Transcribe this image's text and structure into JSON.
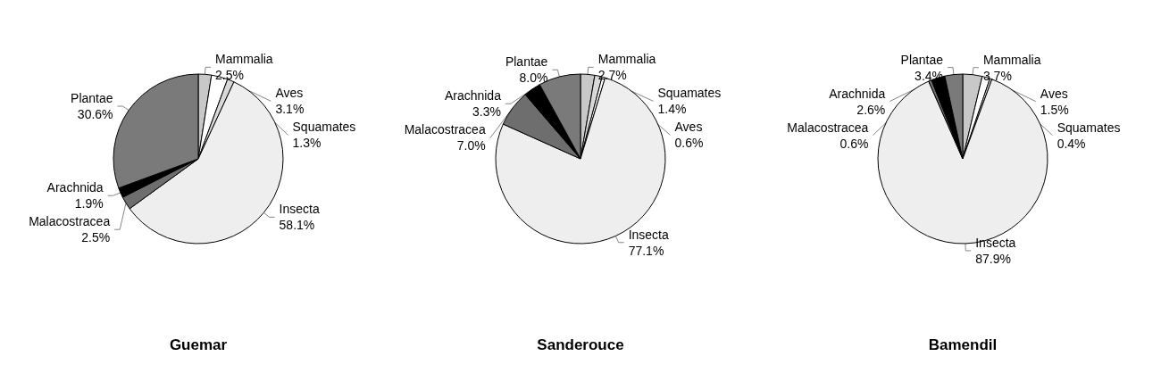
{
  "chart_data": [
    {
      "type": "pie",
      "title": "Guemar",
      "categories": [
        "Mammalia",
        "Aves",
        "Squamates",
        "Insecta",
        "Malacostracea",
        "Arachnida",
        "Plantae"
      ],
      "values": [
        2.5,
        3.1,
        1.3,
        58.1,
        2.5,
        1.9,
        30.6
      ],
      "colors": [
        "#c8c8c8",
        "#ffffff",
        "#d8d8d8",
        "#eeeeee",
        "#6e6e6e",
        "#000000",
        "#7a7a7a"
      ],
      "value_labels": [
        "2.5%",
        "3.1%",
        "1.3%",
        "58.1%",
        "2.5%",
        "1.9%",
        "30.6%"
      ],
      "legend": false
    },
    {
      "type": "pie",
      "title": "Sanderouce",
      "categories": [
        "Mammalia",
        "Squamates",
        "Aves",
        "Insecta",
        "Malacostracea",
        "Arachnida",
        "Plantae"
      ],
      "values": [
        2.7,
        1.4,
        0.6,
        77.1,
        7.0,
        3.3,
        8.0
      ],
      "colors": [
        "#c8c8c8",
        "#d8d8d8",
        "#ffffff",
        "#eeeeee",
        "#6e6e6e",
        "#000000",
        "#7a7a7a"
      ],
      "value_labels": [
        "2.7%",
        "1.4%",
        "0.6%",
        "77.1%",
        "7.0%",
        "3.3%",
        "8.0%"
      ],
      "legend": false
    },
    {
      "type": "pie",
      "title": "Bamendil",
      "categories": [
        "Mammalia",
        "Aves",
        "Squamates",
        "Insecta",
        "Malacostracea",
        "Arachnida",
        "Plantae"
      ],
      "values": [
        3.7,
        1.5,
        0.4,
        87.9,
        0.6,
        2.6,
        3.4
      ],
      "colors": [
        "#c8c8c8",
        "#ffffff",
        "#d8d8d8",
        "#eeeeee",
        "#6e6e6e",
        "#000000",
        "#7a7a7a"
      ],
      "value_labels": [
        "3.7%",
        "1.5%",
        "0.4%",
        "87.9%",
        "0.6%",
        "2.6%",
        "3.4%"
      ],
      "legend": false
    }
  ]
}
